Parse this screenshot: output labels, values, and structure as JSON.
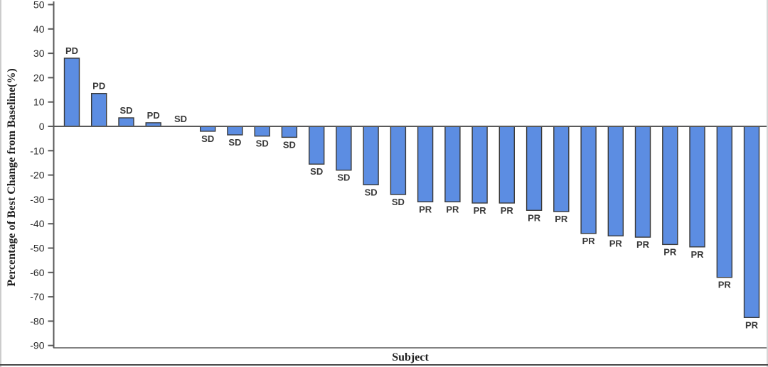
{
  "figure": {
    "background": "#ffffff",
    "edge_border_color": "#cccccc",
    "bottom_rule_color": "#4a4a4a"
  },
  "chart_data": {
    "type": "bar",
    "title": "",
    "xlabel": "Subject",
    "ylabel": "Percentage of Best Change from Baseline(%)",
    "ylim": [
      -90,
      50
    ],
    "yticks": [
      50,
      40,
      30,
      20,
      10,
      0,
      -10,
      -20,
      -30,
      -40,
      -50,
      -60,
      -70,
      -80,
      -90
    ],
    "x_tick_labels": "none",
    "grid": false,
    "legend": "none",
    "bar_color": "#5C8DE2",
    "bar_border_color": "#3a3a3a",
    "axis_color": "#595959",
    "bars": [
      {
        "label": "PD",
        "value": 28
      },
      {
        "label": "PD",
        "value": 13.5
      },
      {
        "label": "SD",
        "value": 3.5
      },
      {
        "label": "PD",
        "value": 1.5
      },
      {
        "label": "SD",
        "value": 0
      },
      {
        "label": "SD",
        "value": -2
      },
      {
        "label": "SD",
        "value": -3.5
      },
      {
        "label": "SD",
        "value": -4
      },
      {
        "label": "SD",
        "value": -4.5
      },
      {
        "label": "SD",
        "value": -15.5
      },
      {
        "label": "SD",
        "value": -18
      },
      {
        "label": "SD",
        "value": -24
      },
      {
        "label": "SD",
        "value": -28
      },
      {
        "label": "PR",
        "value": -31
      },
      {
        "label": "PR",
        "value": -31
      },
      {
        "label": "PR",
        "value": -31.5
      },
      {
        "label": "PR",
        "value": -31.5
      },
      {
        "label": "PR",
        "value": -34.5
      },
      {
        "label": "PR",
        "value": -35
      },
      {
        "label": "PR",
        "value": -44
      },
      {
        "label": "PR",
        "value": -45
      },
      {
        "label": "PR",
        "value": -45.5
      },
      {
        "label": "PR",
        "value": -48.5
      },
      {
        "label": "PR",
        "value": -49.5
      },
      {
        "label": "PR",
        "value": -62
      },
      {
        "label": "PR",
        "value": -78.5
      }
    ]
  }
}
